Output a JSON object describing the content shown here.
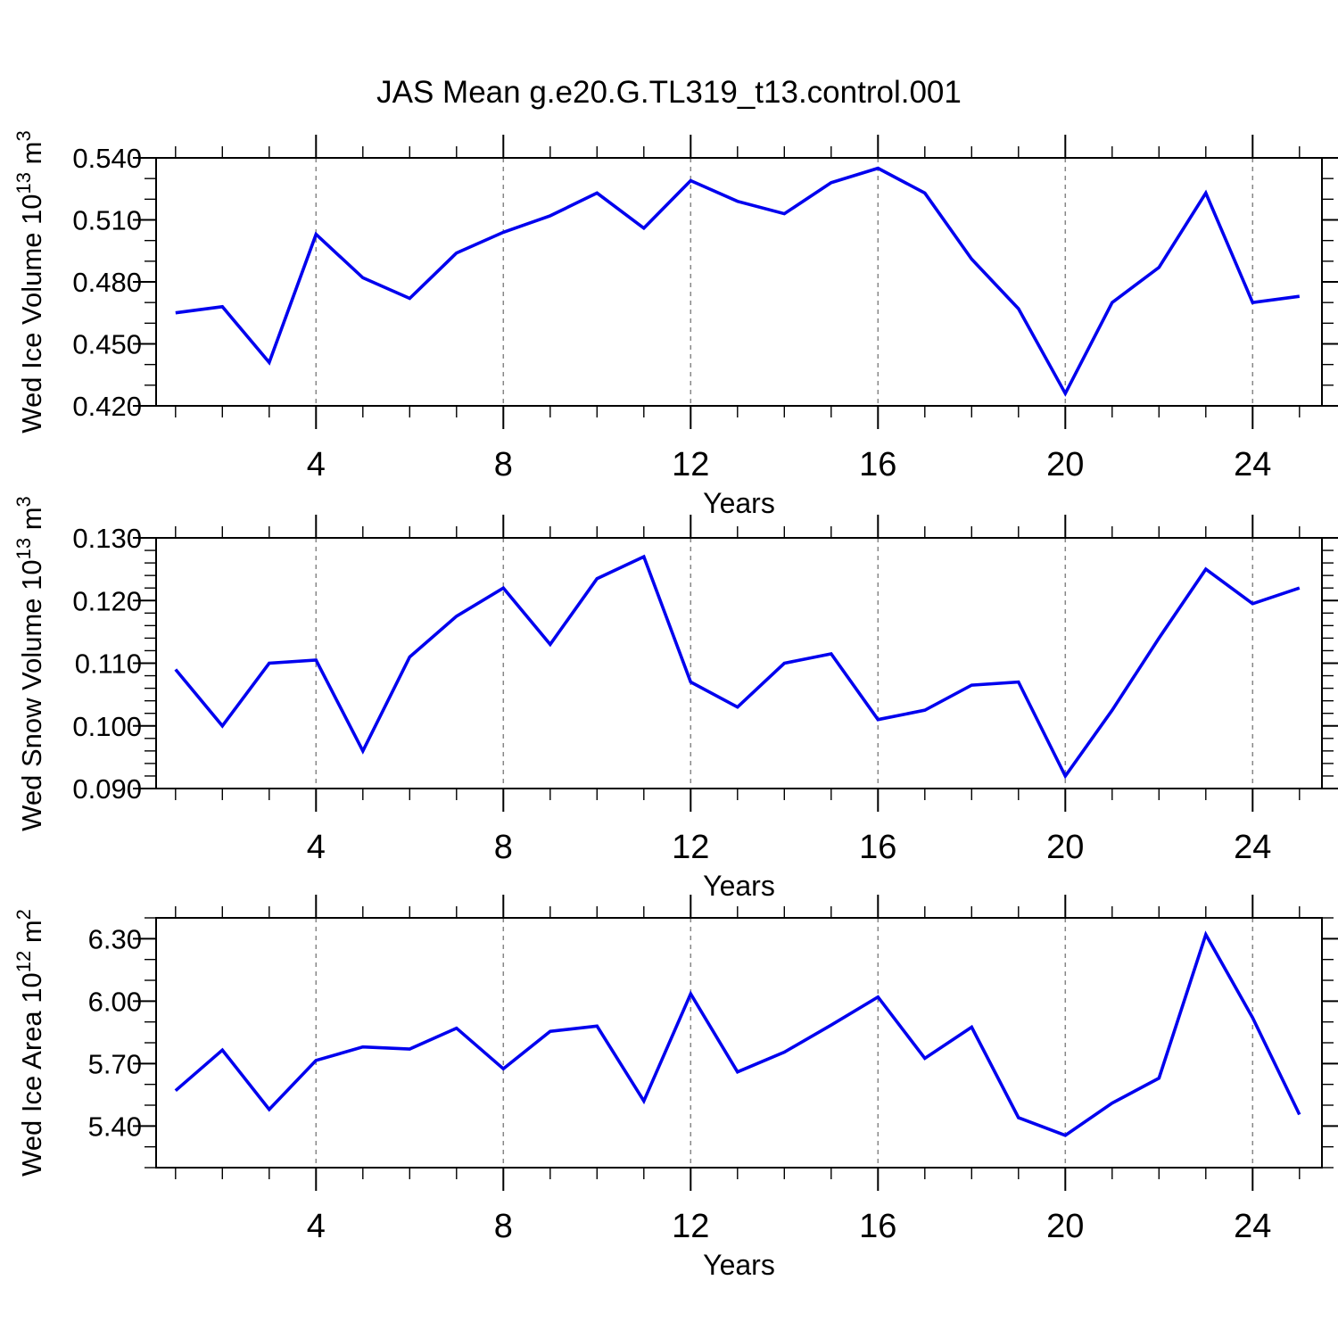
{
  "title": "JAS Mean g.e20.G.TL319_t13.control.001",
  "colors": {
    "line": "#0000ee",
    "axis": "#000000",
    "text": "#000000",
    "gridline": "#878787",
    "background": "#ffffff"
  },
  "x_axis": {
    "label": "Years",
    "tick_labels": [
      "4",
      "8",
      "12",
      "16",
      "20",
      "24"
    ],
    "tick_values": [
      4,
      8,
      12,
      16,
      20,
      24
    ],
    "minor_tick_start": 1,
    "minor_tick_end": 25,
    "minor_step": 1,
    "range": [
      0.585,
      25.48
    ]
  },
  "chart_data": [
    {
      "type": "line",
      "name": "wed-ice-volume",
      "ylabel": "Wed Ice Volume 10¹³ m³",
      "ylabel_segments": [
        {
          "t": "Wed Ice Volume 10"
        },
        {
          "t": "13",
          "sup": true
        },
        {
          "t": " m"
        },
        {
          "t": "3",
          "sup": true
        }
      ],
      "xlabel": "Years",
      "ylim": [
        0.42,
        0.54
      ],
      "y_tick_labels": [
        "0.420",
        "0.450",
        "0.480",
        "0.510",
        "0.540"
      ],
      "y_tick_values": [
        0.42,
        0.45,
        0.48,
        0.51,
        0.54
      ],
      "y_minor_step": 0.01,
      "grid": "vertical dashed at labeled x ticks",
      "x": [
        1,
        2,
        3,
        4,
        5,
        6,
        7,
        8,
        9,
        10,
        11,
        12,
        13,
        14,
        15,
        16,
        17,
        18,
        19,
        20,
        21,
        22,
        23,
        24,
        25
      ],
      "values": [
        0.465,
        0.468,
        0.441,
        0.503,
        0.482,
        0.472,
        0.494,
        0.504,
        0.512,
        0.523,
        0.506,
        0.529,
        0.519,
        0.513,
        0.528,
        0.535,
        0.523,
        0.491,
        0.467,
        0.426,
        0.47,
        0.487,
        0.523,
        0.47,
        0.473
      ]
    },
    {
      "type": "line",
      "name": "wed-snow-volume",
      "ylabel": "Wed Snow Volume 10¹³ m³",
      "ylabel_segments": [
        {
          "t": "Wed Snow Volume 10"
        },
        {
          "t": "13",
          "sup": true
        },
        {
          "t": " m"
        },
        {
          "t": "3",
          "sup": true
        }
      ],
      "xlabel": "Years",
      "ylim": [
        0.09,
        0.13
      ],
      "y_tick_labels": [
        "0.090",
        "0.100",
        "0.110",
        "0.120",
        "0.130"
      ],
      "y_tick_values": [
        0.09,
        0.1,
        0.11,
        0.12,
        0.13
      ],
      "y_minor_step": 0.002,
      "grid": "vertical dashed at labeled x ticks",
      "x": [
        1,
        2,
        3,
        4,
        5,
        6,
        7,
        8,
        9,
        10,
        11,
        12,
        13,
        14,
        15,
        16,
        17,
        18,
        19,
        20,
        21,
        22,
        23,
        24,
        25
      ],
      "values": [
        0.109,
        0.1,
        0.11,
        0.1105,
        0.096,
        0.111,
        0.1175,
        0.122,
        0.113,
        0.1235,
        0.127,
        0.107,
        0.103,
        0.11,
        0.1115,
        0.101,
        0.1025,
        0.1065,
        0.107,
        0.092,
        0.1025,
        0.114,
        0.125,
        0.1195,
        0.122
      ]
    },
    {
      "type": "line",
      "name": "wed-ice-area",
      "ylabel": "Wed Ice Area 10¹² m²",
      "ylabel_segments": [
        {
          "t": "Wed Ice Area 10"
        },
        {
          "t": "12",
          "sup": true
        },
        {
          "t": " m"
        },
        {
          "t": "2",
          "sup": true
        }
      ],
      "xlabel": "Years",
      "ylim": [
        5.2,
        6.4
      ],
      "y_tick_labels": [
        "5.40",
        "5.70",
        "6.00",
        "6.30"
      ],
      "y_tick_values": [
        5.4,
        5.7,
        6.0,
        6.3
      ],
      "y_minor_step": 0.1,
      "grid": "vertical dashed at labeled x ticks",
      "x": [
        1,
        2,
        3,
        4,
        5,
        6,
        7,
        8,
        9,
        10,
        11,
        12,
        13,
        14,
        15,
        16,
        17,
        18,
        19,
        20,
        21,
        22,
        23,
        24,
        25
      ],
      "values": [
        5.57,
        5.765,
        5.48,
        5.715,
        5.78,
        5.77,
        5.87,
        5.675,
        5.855,
        5.88,
        5.52,
        6.035,
        5.66,
        5.755,
        5.885,
        6.02,
        5.725,
        5.875,
        5.44,
        5.355,
        5.51,
        5.63,
        6.32,
        5.92,
        5.455
      ]
    }
  ]
}
